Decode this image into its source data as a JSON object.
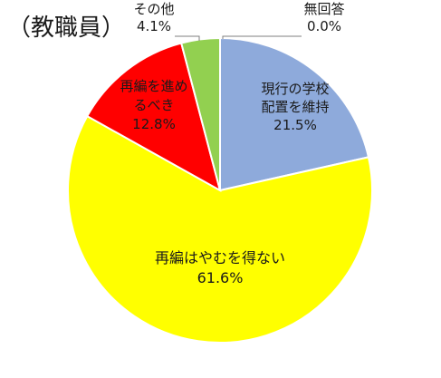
{
  "title": "（教職員）",
  "chart_data": {
    "type": "pie",
    "start_angle_deg": 0,
    "direction": "clockwise",
    "slices": [
      {
        "label": "現行の学校配置を維持",
        "label_lines": [
          "現行の学校",
          "配置を維持"
        ],
        "value": 21.5,
        "value_text": "21.5%",
        "color": "#8eaadb"
      },
      {
        "label": "再編はやむを得ない",
        "label_lines": [
          "再編はやむを得ない"
        ],
        "value": 61.6,
        "value_text": "61.6%",
        "color": "#ffff00"
      },
      {
        "label": "再編を進めるべき",
        "label_lines": [
          "再編を進め",
          "るべき"
        ],
        "value": 12.8,
        "value_text": "12.8%",
        "color": "#ff0000"
      },
      {
        "label": "その他",
        "label_lines": [
          "その他"
        ],
        "value": 4.1,
        "value_text": "4.1%",
        "color": "#92d050"
      },
      {
        "label": "無回答",
        "label_lines": [
          "無回答"
        ],
        "value": 0.0,
        "value_text": "0.0%",
        "color": "#c0c0c0"
      }
    ]
  }
}
